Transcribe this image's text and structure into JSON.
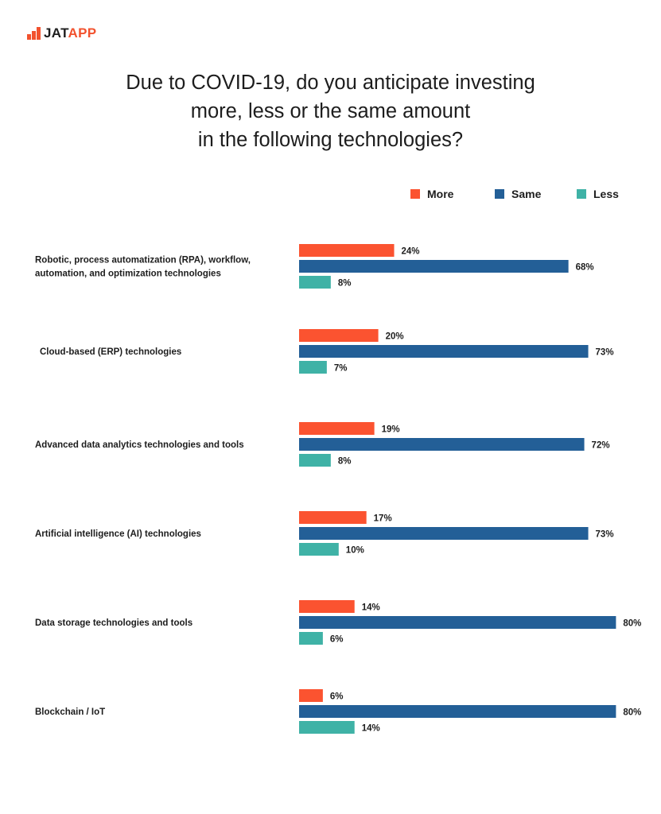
{
  "brand": {
    "name_part1": "JAT",
    "name_part2": "APP",
    "colors": {
      "mark": "#f2522e",
      "text": "#1d1d1d"
    }
  },
  "chart_data": {
    "type": "bar",
    "orientation": "horizontal",
    "title": [
      "Due to COVID-19, do you anticipate investing",
      "more, less or the same amount",
      "in the following technologies?"
    ],
    "xlabel": "",
    "ylabel": "",
    "xlim": [
      0,
      100
    ],
    "grid": false,
    "legend_position": "top-right",
    "value_suffix": "%",
    "categories": [
      [
        "Robotic, process automatization (RPA), workflow,",
        "automation, and optimization technologies"
      ],
      [
        "Cloud-based (ERP) technologies"
      ],
      [
        "Advanced data analytics technologies and tools"
      ],
      [
        "Artificial intelligence (AI) technologies"
      ],
      [
        "Data storage technologies and tools"
      ],
      [
        "Blockchain / IoT"
      ]
    ],
    "series": [
      {
        "name": "More",
        "color": "#fb5330",
        "values": [
          24,
          20,
          19,
          17,
          14,
          6
        ]
      },
      {
        "name": "Same",
        "color": "#235f97",
        "values": [
          68,
          73,
          72,
          73,
          80,
          80
        ]
      },
      {
        "name": "Less",
        "color": "#3fb2a6",
        "values": [
          8,
          7,
          8,
          10,
          6,
          14
        ]
      }
    ]
  }
}
